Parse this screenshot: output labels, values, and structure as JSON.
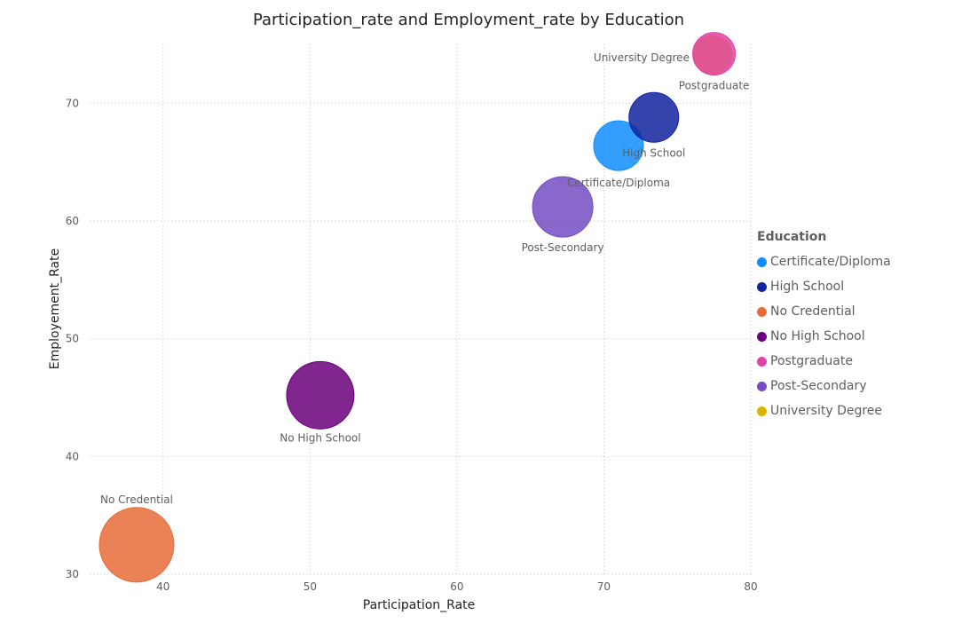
{
  "chart_data": {
    "type": "scatter",
    "title": "Participation_rate and Employment_rate by Education",
    "xlabel": "Participation_Rate",
    "ylabel": "Employement_Rate",
    "xlim": [
      35,
      80
    ],
    "ylim": [
      30,
      75
    ],
    "xticks": [
      40,
      50,
      60,
      70,
      80
    ],
    "yticks": [
      30,
      40,
      50,
      60,
      70
    ],
    "grid": true,
    "legend_title": "Education",
    "legend_position": "right",
    "series": [
      {
        "name": "Certificate/Diploma",
        "color": "#118DFF",
        "x": 71.0,
        "y": 66.4
      },
      {
        "name": "High School",
        "color": "#12239E",
        "x": 73.4,
        "y": 68.8
      },
      {
        "name": "No Credential",
        "color": "#E66C37",
        "x": 38.2,
        "y": 32.5
      },
      {
        "name": "No High School",
        "color": "#6B007B",
        "x": 50.7,
        "y": 45.2
      },
      {
        "name": "Postgraduate",
        "color": "#E044A7",
        "x": 77.5,
        "y": 74.2
      },
      {
        "name": "Post-Secondary",
        "color": "#744EC2",
        "x": 67.2,
        "y": 61.2
      },
      {
        "name": "University Degree",
        "color": "#D9B300",
        "x": 77.4,
        "y": 74.1
      }
    ]
  }
}
